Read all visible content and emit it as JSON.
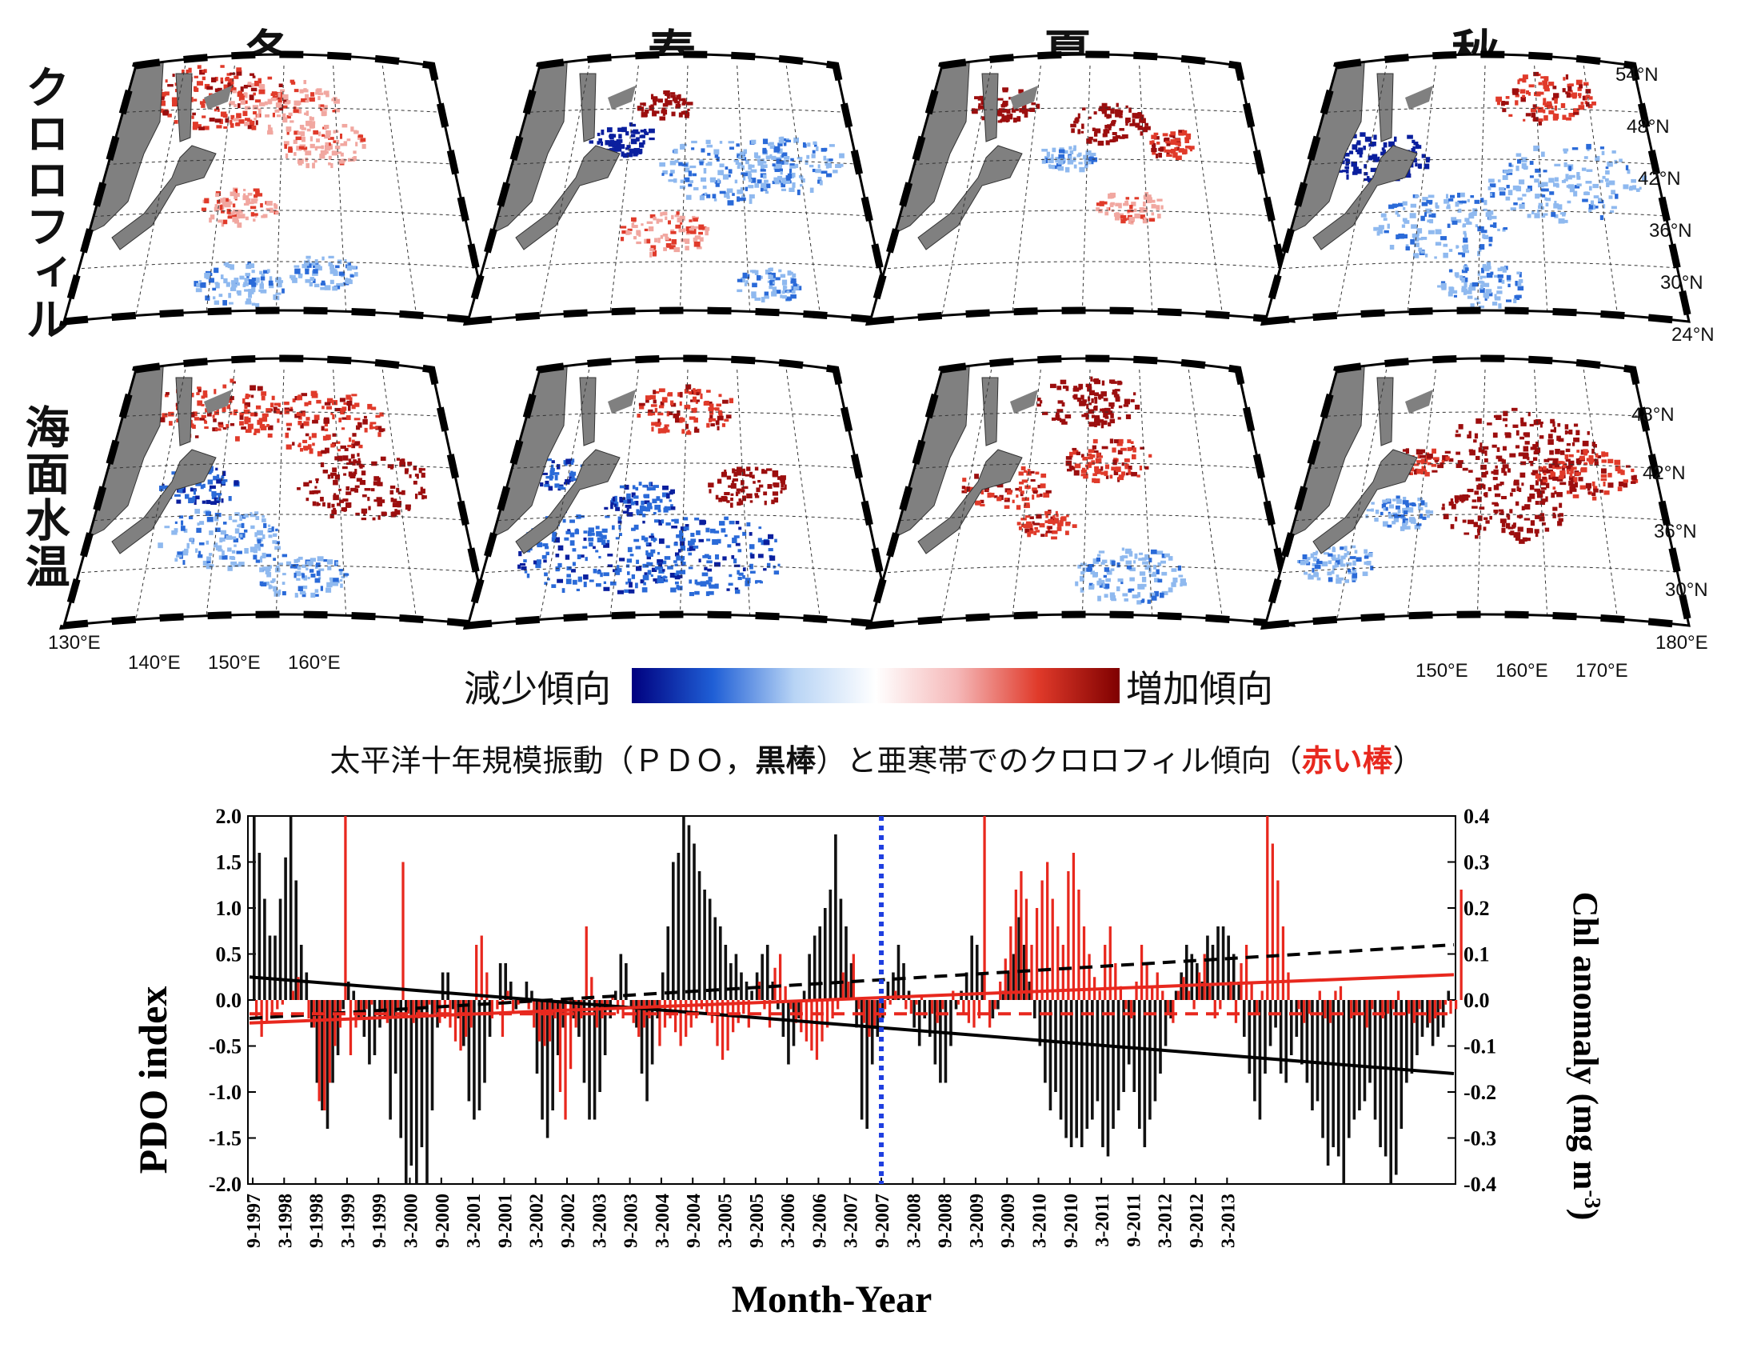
{
  "maps": {
    "seasons": [
      "冬",
      "春",
      "夏",
      "秋"
    ],
    "row_labels": [
      "クロロフィル",
      "海面水温"
    ],
    "chl_lat_ticks": [
      "54°N",
      "48°N",
      "42°N",
      "36°N",
      "30°N",
      "24°N"
    ],
    "sst_lat_ticks": [
      "48°N",
      "42°N",
      "36°N",
      "30°N"
    ],
    "left_lon_ticks": [
      "130°E",
      "140°E",
      "150°E",
      "160°E"
    ],
    "right_lon_ticks": [
      "150°E",
      "160°E",
      "170°E",
      "180°E"
    ],
    "colorbar": {
      "left_label": "減少傾向",
      "right_label": "増加傾向",
      "colors": [
        "#00007f",
        "#1f5fd6",
        "#b8d4f5",
        "#ffffff",
        "#f5b8b8",
        "#e03a2a",
        "#7f0000"
      ]
    },
    "land_color": "#808080"
  },
  "caption": {
    "part1": "太平洋十年規模振動（ＰＤＯ，",
    "part2": "黒棒",
    "part3": "）と亜寒帯でのクロロフィル傾向（",
    "part4": "赤い棒",
    "part5": "）",
    "red_color": "#e8281e"
  },
  "chart_data": {
    "type": "bar",
    "xlabel": "Month-Year",
    "ylabel_left": "PDO index",
    "ylabel_right": "Chl anomaly (mg m-3)",
    "ylim_left": [
      -2.0,
      2.0
    ],
    "ylim_right": [
      -0.4,
      0.4
    ],
    "left_ticks": [
      "2.0",
      "1.5",
      "1.0",
      "0.5",
      "0.0",
      "-0.5",
      "-1.0",
      "-1.5",
      "-2.0"
    ],
    "right_ticks": [
      "0.4",
      "0.3",
      "0.2",
      "0.1",
      "0.0",
      "-0.1",
      "-0.2",
      "-0.3",
      "-0.4"
    ],
    "x_tick_labels": [
      "9-1997",
      "3-1998",
      "9-1998",
      "3-1999",
      "9-1999",
      "3-2000",
      "9-2000",
      "3-2001",
      "9-2001",
      "3-2002",
      "9-2002",
      "3-2003",
      "9-2003",
      "3-2004",
      "9-2004",
      "3-2005",
      "9-2005",
      "3-2006",
      "9-2006",
      "3-2007",
      "9-2007",
      "3-2008",
      "9-2008",
      "3-2009",
      "9-2009",
      "3-2010",
      "9-2010",
      "3-2011",
      "9-2011",
      "3-2012",
      "9-2012",
      "3-2013"
    ],
    "vline_at": "9-2007",
    "series": [
      {
        "name": "PDO",
        "color": "#111111",
        "values": [
          2.0,
          1.6,
          1.1,
          0.7,
          0.7,
          1.1,
          1.55,
          2.0,
          1.3,
          0.6,
          0.3,
          -0.3,
          -0.9,
          -1.2,
          -1.4,
          -0.9,
          -0.6,
          -0.1,
          0.2,
          0.1,
          -0.2,
          -0.4,
          -0.7,
          -0.6,
          -0.3,
          -0.2,
          -1.3,
          -0.8,
          -1.5,
          -2.0,
          -1.8,
          -2.1,
          -1.6,
          -2.0,
          -1.2,
          -0.3,
          0.3,
          0.3,
          -0.1,
          -0.2,
          -0.5,
          -1.1,
          -1.3,
          -1.2,
          -0.9,
          -0.4,
          0.0,
          0.4,
          0.4,
          0.2,
          -0.1,
          0.0,
          0.2,
          0.1,
          -0.8,
          -1.3,
          -1.5,
          -1.2,
          -0.6,
          -0.3,
          0.0,
          -0.2,
          -0.4,
          -0.9,
          -1.3,
          -1.3,
          -1.0,
          -0.6,
          -0.2,
          0.1,
          0.5,
          0.4,
          -0.1,
          -0.3,
          -0.8,
          -1.1,
          -0.7,
          -0.2,
          0.3,
          0.8,
          1.5,
          1.6,
          2.1,
          1.9,
          1.7,
          1.4,
          1.2,
          1.1,
          0.9,
          0.8,
          0.6,
          0.4,
          0.5,
          0.3,
          0.2,
          0.1,
          0.3,
          0.5,
          0.6,
          0.2,
          -0.1,
          -0.4,
          -0.7,
          -0.5,
          -0.2,
          0.1,
          0.5,
          0.7,
          0.8,
          1.0,
          1.2,
          1.8,
          1.1,
          0.8,
          0.4,
          -0.3,
          -1.3,
          -1.4,
          -0.7,
          -0.4,
          -0.2,
          0.2,
          0.3,
          0.6,
          0.4,
          0.1,
          -0.3,
          -0.5,
          -0.2,
          -0.4,
          -0.7,
          -0.9,
          -0.9,
          -0.5,
          -0.1,
          0.1,
          0.3,
          0.7,
          0.6,
          0.3,
          0.0,
          -0.2,
          -0.1,
          0.1,
          0.3,
          0.5,
          0.9,
          0.6,
          0.2,
          -0.2,
          -0.5,
          -0.9,
          -1.2,
          -1.0,
          -1.3,
          -1.5,
          -1.6,
          -1.5,
          -1.6,
          -1.4,
          -1.3,
          -1.1,
          -1.6,
          -1.7,
          -1.4,
          -1.2,
          -1.0,
          -0.7,
          -1.0,
          -1.4,
          -1.6,
          -1.3,
          -1.1,
          -0.8,
          -0.5,
          -0.2,
          0.1,
          0.3,
          0.6,
          0.5,
          0.4,
          0.2,
          0.7,
          0.6,
          0.8,
          0.8,
          0.7,
          0.5,
          0.2,
          -0.4,
          -0.8,
          -1.1,
          -1.3,
          -0.8,
          -0.5,
          -0.3,
          -0.8,
          -0.9,
          -0.6,
          -0.4,
          -0.7,
          -0.9,
          -1.2,
          -1.1,
          -1.5,
          -1.8,
          -1.6,
          -1.7,
          -2.0,
          -1.5,
          -1.3,
          -1.2,
          -1.1,
          -0.9,
          -1.3,
          -1.6,
          -1.7,
          -2.0,
          -1.9,
          -1.4,
          -0.9,
          -0.8,
          -0.6,
          -0.4,
          -0.3,
          -0.5,
          -0.4,
          -0.3,
          0.1
        ]
      },
      {
        "name": "Chl",
        "color": "#e8281e",
        "values": [
          -0.04,
          -0.08,
          -0.05,
          -0.03,
          -0.02,
          -0.01,
          0.0,
          0.02,
          0.05,
          0.0,
          -0.04,
          -0.06,
          -0.22,
          -0.24,
          -0.18,
          -0.1,
          -0.06,
          0.4,
          -0.12,
          -0.06,
          -0.04,
          -0.02,
          -0.01,
          0.0,
          -0.02,
          -0.05,
          -0.04,
          -0.02,
          0.3,
          -0.03,
          -0.05,
          -0.04,
          -0.02,
          -0.01,
          -0.03,
          -0.05,
          -0.04,
          -0.06,
          -0.09,
          -0.11,
          -0.08,
          -0.06,
          0.12,
          0.14,
          0.06,
          -0.04,
          -0.02,
          -0.08,
          0.02,
          -0.03,
          -0.01,
          0.0,
          -0.02,
          -0.06,
          -0.09,
          -0.1,
          -0.09,
          -0.04,
          -0.2,
          -0.26,
          -0.15,
          -0.06,
          -0.04,
          0.16,
          0.05,
          -0.06,
          -0.04,
          -0.02,
          0.01,
          -0.03,
          -0.04,
          0.0,
          -0.05,
          -0.08,
          -0.06,
          -0.04,
          -0.02,
          -0.1,
          -0.06,
          -0.04,
          -0.07,
          -0.1,
          -0.08,
          -0.06,
          -0.04,
          -0.02,
          -0.03,
          -0.05,
          -0.1,
          -0.13,
          -0.11,
          -0.07,
          -0.05,
          -0.03,
          -0.06,
          0.0,
          0.04,
          -0.02,
          -0.06,
          0.07,
          0.1,
          0.03,
          -0.02,
          -0.05,
          -0.07,
          -0.09,
          -0.11,
          -0.13,
          -0.09,
          -0.06,
          -0.04,
          -0.02,
          0.06,
          0.04,
          0.1,
          -0.02,
          -0.05,
          -0.08,
          -0.06,
          -0.04,
          -0.02,
          -0.01,
          0.02,
          0.0,
          -0.02,
          -0.03,
          -0.01,
          0.01,
          0.0,
          -0.03,
          -0.05,
          -0.02,
          0.0,
          0.02,
          -0.01,
          -0.03,
          -0.05,
          -0.06,
          -0.04,
          0.4,
          -0.06,
          -0.02,
          0.04,
          0.09,
          0.16,
          0.24,
          0.28,
          0.22,
          0.12,
          0.2,
          0.26,
          0.3,
          0.22,
          0.16,
          0.12,
          0.28,
          0.32,
          0.24,
          0.16,
          0.1,
          0.05,
          0.02,
          0.12,
          0.16,
          0.08,
          0.03,
          -0.02,
          -0.04,
          0.04,
          0.12,
          0.08,
          0.03,
          0.06,
          0.02,
          -0.03,
          -0.05,
          0.02,
          0.05,
          0.02,
          -0.02,
          0.06,
          0.1,
          0.03,
          -0.04,
          -0.02,
          0.0,
          0.04,
          -0.05,
          0.08,
          0.12,
          0.04,
          -0.03,
          0.02,
          0.4,
          0.34,
          0.26,
          0.16,
          0.06,
          0.0,
          -0.02,
          -0.05,
          -0.03,
          0.0,
          0.02,
          -0.04,
          -0.05,
          0.02,
          0.03,
          0.0,
          -0.04,
          -0.03,
          0.0,
          -0.06,
          -0.02,
          0.0,
          -0.04,
          -0.03,
          -0.02,
          0.02,
          0.0,
          -0.03,
          -0.05,
          -0.02,
          0.0,
          -0.05,
          -0.04,
          -0.02,
          -0.01,
          -0.03,
          -0.02,
          0.24
        ]
      }
    ],
    "trend_lines": [
      {
        "name": "PDO trend",
        "color": "#000000",
        "style": "solid",
        "axis": "left",
        "from": 0.25,
        "to": -0.8
      },
      {
        "name": "PDO trend",
        "color": "#000000",
        "style": "dashed",
        "axis": "left",
        "from": -0.2,
        "to": 0.6
      },
      {
        "name": "Chl trend",
        "color": "#e8281e",
        "style": "solid",
        "axis": "right",
        "from": -0.05,
        "to": 0.055
      },
      {
        "name": "Chl trend",
        "color": "#e8281e",
        "style": "dashed",
        "axis": "right",
        "from": -0.03,
        "to": -0.03
      }
    ],
    "vline_color": "#1f3fe0"
  }
}
